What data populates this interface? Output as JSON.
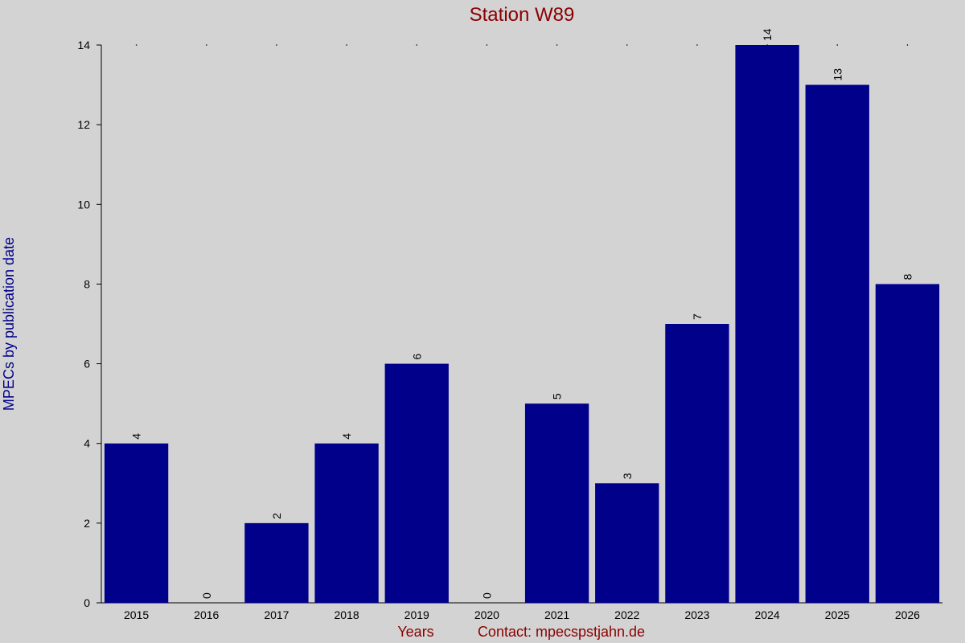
{
  "chart_data": {
    "type": "bar",
    "title": "Station W89",
    "xlabel": "Years",
    "ylabel": "MPECs by publication date",
    "annotation": "Contact: mpecspstjahn.de",
    "categories": [
      "2015",
      "2016",
      "2017",
      "2018",
      "2019",
      "2020",
      "2021",
      "2022",
      "2023",
      "2024",
      "2025",
      "2026"
    ],
    "values": [
      4,
      0,
      2,
      4,
      6,
      0,
      5,
      3,
      7,
      14,
      13,
      8
    ],
    "color": "#00008b",
    "ylim": [
      0,
      14
    ],
    "yticks": [
      0,
      2,
      4,
      6,
      8,
      10,
      12,
      14
    ],
    "grid": false
  }
}
